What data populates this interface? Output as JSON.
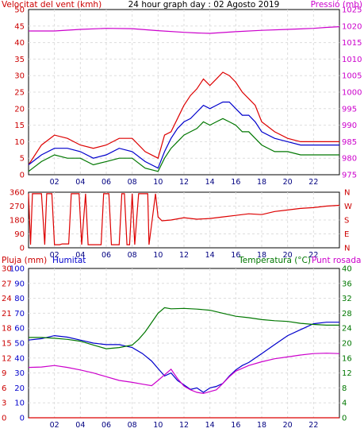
{
  "chart_data": [
    {
      "type": "line",
      "title": "24 hour graph day : 02 Agosto 2019",
      "x_ticks": [
        "02",
        "04",
        "06",
        "08",
        "10",
        "12",
        "14",
        "16",
        "18",
        "20",
        "22"
      ],
      "left_axis": {
        "label": "Velocitat del vent (kmh)",
        "ticks": [
          "0",
          "5",
          "10",
          "15",
          "20",
          "25",
          "30",
          "35",
          "40",
          "45",
          "50"
        ],
        "range": [
          0,
          50
        ],
        "color": "#cc0000"
      },
      "right_axis": {
        "label": "Pressió (mb)",
        "ticks": [
          "975",
          "980",
          "985",
          "990",
          "995",
          "1000",
          "1005",
          "1010",
          "1015",
          "1020",
          "1025"
        ],
        "range": [
          975,
          1025
        ],
        "color": "#cc00cc"
      },
      "series": [
        {
          "name": "Velocitat del vent (kmh)",
          "axis": "left",
          "color": "#dd0000",
          "x": [
            0,
            1,
            2,
            3,
            4,
            5,
            6,
            7,
            8,
            9,
            10,
            10.5,
            11,
            11.5,
            12,
            12.5,
            13,
            13.5,
            14,
            14.5,
            15,
            15.5,
            16,
            16.5,
            17,
            17.5,
            18,
            19,
            20,
            21,
            22,
            23,
            24
          ],
          "y": [
            3,
            9,
            12,
            11,
            9,
            8,
            9,
            11,
            11,
            7,
            5,
            12,
            13,
            17,
            21,
            24,
            26,
            29,
            27,
            29,
            31,
            30,
            28,
            25,
            23,
            21,
            16,
            13,
            11,
            10,
            10,
            10,
            10
          ]
        },
        {
          "name": "",
          "axis": "left",
          "color": "#0000cc",
          "x": [
            0,
            1,
            2,
            3,
            4,
            5,
            6,
            7,
            8,
            9,
            10,
            10.5,
            11,
            11.5,
            12,
            12.5,
            13,
            13.5,
            14,
            14.5,
            15,
            15.5,
            16,
            16.5,
            17,
            17.5,
            18,
            19,
            20,
            21,
            22,
            23,
            24
          ],
          "y": [
            3,
            6,
            8,
            8,
            7,
            5,
            6,
            8,
            7,
            4,
            2,
            7,
            11,
            14,
            16,
            17,
            19,
            21,
            20,
            21,
            22,
            22,
            20,
            18,
            18,
            16,
            13,
            11,
            10,
            9,
            9,
            9,
            9
          ]
        },
        {
          "name": "",
          "axis": "left",
          "color": "#007700",
          "x": [
            0,
            1,
            2,
            3,
            4,
            5,
            6,
            7,
            8,
            9,
            10,
            10.5,
            11,
            11.5,
            12,
            12.5,
            13,
            13.5,
            14,
            14.5,
            15,
            15.5,
            16,
            16.5,
            17,
            17.5,
            18,
            19,
            20,
            21,
            22,
            23,
            24
          ],
          "y": [
            1,
            4,
            6,
            5,
            5,
            3,
            4,
            5,
            5,
            2,
            1,
            5,
            8,
            10,
            12,
            13,
            14,
            16,
            15,
            16,
            17,
            16,
            15,
            13,
            13,
            11,
            9,
            7,
            7,
            6,
            6,
            6,
            6
          ]
        },
        {
          "name": "Pressió (mb)",
          "axis": "right",
          "color": "#cc00cc",
          "x": [
            0,
            2,
            4,
            6,
            8,
            10,
            12,
            13,
            14,
            16,
            18,
            20,
            22,
            23,
            24
          ],
          "y": [
            1018.5,
            1018.5,
            1019,
            1019.3,
            1019.2,
            1018.6,
            1018.1,
            1017.9,
            1017.8,
            1018.3,
            1018.7,
            1019,
            1019.3,
            1019.6,
            1019.8
          ]
        }
      ]
    },
    {
      "type": "line",
      "x_ticks": [
        "02",
        "04",
        "06",
        "08",
        "10",
        "12",
        "14",
        "16",
        "18",
        "20",
        "22"
      ],
      "left_axis": {
        "ticks": [
          "0",
          "90",
          "180",
          "270",
          "360"
        ],
        "range": [
          0,
          360
        ],
        "color": "#cc0000"
      },
      "right_axis": {
        "ticks": [
          "N",
          "E",
          "S",
          "W",
          "N"
        ],
        "color": "#cc0000"
      },
      "series": [
        {
          "name": "",
          "axis": "left",
          "color": "#dd0000",
          "x": [
            0,
            0.15,
            0.3,
            1.0,
            1.25,
            1.4,
            1.8,
            2.0,
            2.4,
            2.6,
            3.1,
            3.3,
            3.5,
            3.7,
            3.9,
            4.1,
            4.4,
            4.6,
            5.6,
            5.8,
            6.2,
            6.4,
            7.0,
            7.2,
            7.4,
            7.6,
            7.8,
            8.0,
            8.2,
            8.5,
            9.2,
            9.3,
            9.8,
            10.0,
            10.3,
            11,
            12,
            13,
            14,
            15,
            16,
            17,
            18,
            19,
            20,
            21,
            22,
            23,
            24
          ],
          "y": [
            350,
            20,
            350,
            350,
            20,
            350,
            350,
            20,
            20,
            25,
            25,
            350,
            350,
            350,
            350,
            20,
            350,
            20,
            20,
            350,
            350,
            20,
            20,
            350,
            350,
            20,
            20,
            350,
            20,
            350,
            350,
            20,
            350,
            200,
            175,
            180,
            195,
            185,
            190,
            200,
            210,
            220,
            215,
            235,
            245,
            255,
            260,
            270,
            275
          ]
        }
      ]
    },
    {
      "type": "line",
      "x_ticks": [
        "02",
        "04",
        "06",
        "08",
        "10",
        "12",
        "14",
        "16",
        "18",
        "20",
        "22"
      ],
      "axes": [
        {
          "label": "Pluja (mm)",
          "side": "left-outer",
          "ticks": [
            "0",
            "3",
            "6",
            "9",
            "12",
            "15",
            "18",
            "21",
            "24",
            "27",
            "30"
          ],
          "range": [
            0,
            30
          ],
          "color": "#cc0000"
        },
        {
          "label": "Humitat",
          "side": "left-inner",
          "ticks": [
            "0",
            "10",
            "20",
            "30",
            "40",
            "50",
            "60",
            "70",
            "80",
            "90",
            "100"
          ],
          "range": [
            0,
            100
          ],
          "color": "#0000cc"
        },
        {
          "label": "Temperatura (°C)",
          "side": "right-inner",
          "ticks": [
            "0",
            "4",
            "8",
            "12",
            "16",
            "20",
            "24",
            "28",
            "32",
            "36",
            "40"
          ],
          "range": [
            0,
            40
          ],
          "color": "#007700"
        },
        {
          "label": "Punt rosada",
          "side": "right-outer",
          "color": "#cc00cc"
        }
      ],
      "series": [
        {
          "name": "Pluja (mm)",
          "axis": "Pluja (mm)",
          "color": "#dd0000",
          "x": [
            0,
            24
          ],
          "y": [
            0,
            0
          ]
        },
        {
          "name": "Humitat",
          "axis": "Humitat",
          "color": "#0000cc",
          "x": [
            0,
            1,
            2,
            3,
            4,
            5,
            6,
            7,
            8,
            8.8,
            9.5,
            10,
            10.5,
            11,
            11.5,
            12,
            12.5,
            13,
            13.5,
            14,
            14.5,
            15,
            15.5,
            16,
            16.5,
            17,
            18,
            19,
            20,
            21,
            22,
            23,
            24
          ],
          "y": [
            52,
            53,
            55,
            54,
            52,
            50,
            49,
            49,
            47,
            43,
            38,
            33,
            28,
            30,
            25,
            22,
            19,
            20,
            17,
            20,
            21,
            23,
            28,
            32,
            35,
            37,
            43,
            49,
            55,
            59,
            63,
            64,
            64
          ]
        },
        {
          "name": "Temperatura (°C)",
          "axis": "Temperatura (°C)",
          "color": "#007700",
          "x": [
            0,
            1,
            2,
            3,
            4,
            5,
            6,
            7,
            8,
            8.5,
            9,
            9.5,
            10,
            10.5,
            11,
            12,
            13,
            14,
            15,
            16,
            17,
            18,
            19,
            20,
            21,
            22,
            23,
            24
          ],
          "y": [
            21.5,
            21.5,
            21.3,
            21,
            20.5,
            19.5,
            18.5,
            18.8,
            19.5,
            21,
            23,
            25.5,
            28,
            29.5,
            29.2,
            29.3,
            29.1,
            28.8,
            28,
            27.2,
            26.8,
            26.3,
            26,
            25.8,
            25.3,
            25,
            24.8,
            24.8
          ]
        },
        {
          "name": "Punt rosada",
          "axis": "Temperatura (°C)",
          "color": "#cc00cc",
          "x": [
            0,
            1,
            2,
            3,
            4,
            5,
            6,
            7,
            8,
            8.8,
            9.5,
            10,
            10.5,
            11,
            11.5,
            12,
            12.5,
            13,
            13.5,
            14,
            14.5,
            15,
            15.5,
            16,
            17,
            18,
            19,
            20,
            21,
            22,
            23,
            24
          ],
          "y": [
            13.5,
            13.6,
            14,
            13.5,
            12.8,
            12,
            11,
            10,
            9.5,
            9,
            8.6,
            10,
            11.5,
            13,
            10.5,
            8.5,
            7.5,
            6.8,
            6.5,
            7,
            7.5,
            9.2,
            11,
            12.5,
            14,
            15,
            15.8,
            16.3,
            16.8,
            17.2,
            17.3,
            17.2
          ]
        }
      ]
    }
  ]
}
